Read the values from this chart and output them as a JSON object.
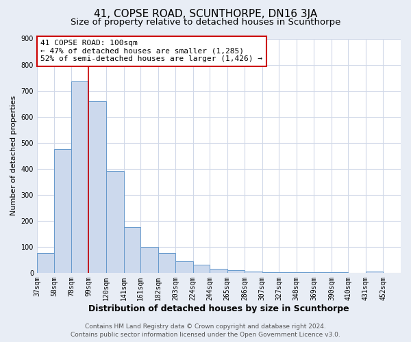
{
  "title": "41, COPSE ROAD, SCUNTHORPE, DN16 3JA",
  "subtitle": "Size of property relative to detached houses in Scunthorpe",
  "xlabel": "Distribution of detached houses by size in Scunthorpe",
  "ylabel": "Number of detached properties",
  "bar_left_edges": [
    37,
    58,
    78,
    99,
    120,
    141,
    161,
    182,
    203,
    224,
    244,
    265,
    286,
    307,
    327,
    348,
    369,
    390,
    410,
    431
  ],
  "bar_widths": [
    21,
    20,
    21,
    21,
    21,
    20,
    21,
    21,
    21,
    20,
    21,
    21,
    21,
    20,
    21,
    21,
    21,
    20,
    21,
    21
  ],
  "bar_heights": [
    75,
    475,
    735,
    660,
    390,
    175,
    100,
    75,
    45,
    32,
    15,
    10,
    5,
    3,
    2,
    2,
    2,
    1,
    0,
    5
  ],
  "bar_color": "#ccd9ed",
  "bar_edge_color": "#6699cc",
  "tick_labels": [
    "37sqm",
    "58sqm",
    "78sqm",
    "99sqm",
    "120sqm",
    "141sqm",
    "161sqm",
    "182sqm",
    "203sqm",
    "224sqm",
    "244sqm",
    "265sqm",
    "286sqm",
    "307sqm",
    "327sqm",
    "348sqm",
    "369sqm",
    "390sqm",
    "410sqm",
    "431sqm",
    "452sqm"
  ],
  "ylim": [
    0,
    900
  ],
  "yticks": [
    0,
    100,
    200,
    300,
    400,
    500,
    600,
    700,
    800,
    900
  ],
  "vline_x": 99,
  "vline_color": "#cc0000",
  "annotation_title": "41 COPSE ROAD: 100sqm",
  "annotation_line2": "← 47% of detached houses are smaller (1,285)",
  "annotation_line3": "52% of semi-detached houses are larger (1,426) →",
  "annotation_box_color": "#ffffff",
  "annotation_box_edge": "#cc0000",
  "bg_color": "#e8edf5",
  "plot_bg_color": "#ffffff",
  "grid_color": "#d0d8e8",
  "footer_line1": "Contains HM Land Registry data © Crown copyright and database right 2024.",
  "footer_line2": "Contains public sector information licensed under the Open Government Licence v3.0.",
  "title_fontsize": 11,
  "subtitle_fontsize": 9.5,
  "xlabel_fontsize": 9,
  "ylabel_fontsize": 8,
  "tick_fontsize": 7,
  "annotation_fontsize": 8,
  "footer_fontsize": 6.5
}
